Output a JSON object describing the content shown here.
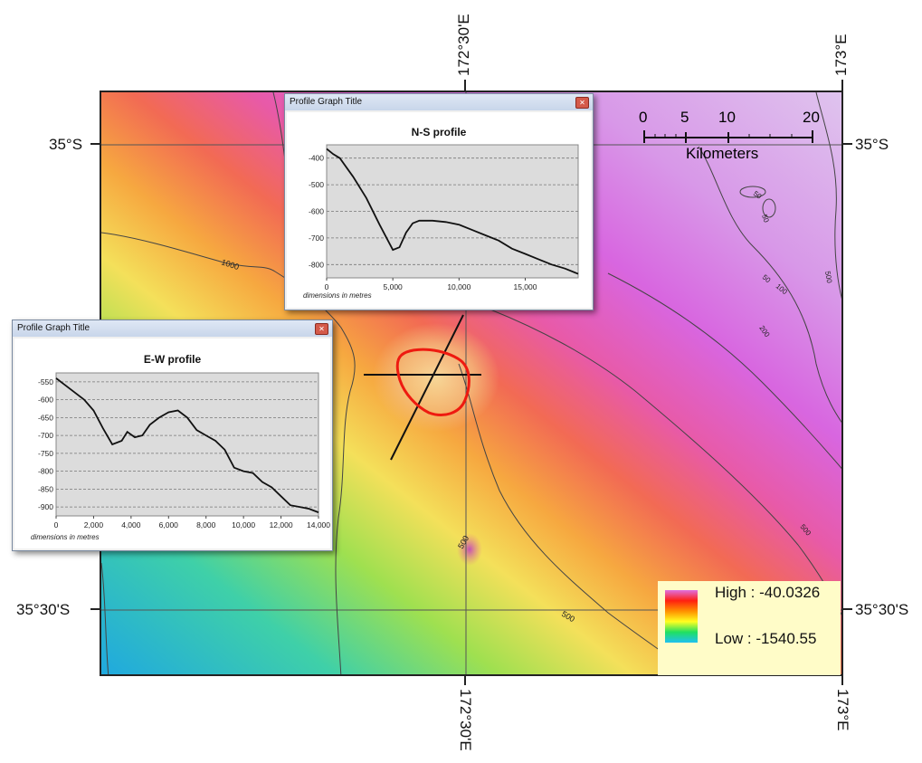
{
  "coords": {
    "top_lon_1": "172°30'E",
    "top_lon_2": "173°E",
    "bottom_lon_1": "172°30'E",
    "bottom_lon_2": "173°E",
    "left_lat_1": "35°S",
    "left_lat_2": "35°30'S",
    "right_lat_1": "35°S",
    "right_lat_2": "35°30'S"
  },
  "scale_bar": {
    "labels": [
      "0",
      "5",
      "10",
      "20"
    ],
    "unit": "Kilometers"
  },
  "contours": [
    "1000",
    "500",
    "500",
    "50",
    "50",
    "50",
    "100",
    "200",
    "500",
    "500"
  ],
  "legend": {
    "high_label": "High : -40.0326",
    "low_label": "Low : -1540.55",
    "colors": [
      "#e070e0",
      "#ff2010",
      "#ff9000",
      "#ffff20",
      "#20e060",
      "#20c0f0"
    ]
  },
  "profile_ns": {
    "window_title": "Profile Graph Title",
    "graph_title": "N-S profile",
    "note": "dimensions in metres",
    "y_ticks": [
      "-400",
      "-500",
      "-600",
      "-700",
      "-800"
    ],
    "x_ticks": [
      "0",
      "5,000",
      "10,000",
      "15,000"
    ],
    "chart_data": {
      "type": "line",
      "title": "N-S profile",
      "xlabel": "dimensions in metres",
      "xlim": [
        0,
        19000
      ],
      "ylim": [
        -850,
        -350
      ],
      "x": [
        0,
        500,
        1000,
        2000,
        3000,
        4000,
        5000,
        5500,
        6000,
        6500,
        7000,
        7500,
        8000,
        9000,
        10000,
        11000,
        12000,
        13000,
        14000,
        15000,
        16000,
        17000,
        18000,
        19000
      ],
      "y": [
        -365,
        -385,
        -400,
        -470,
        -550,
        -650,
        -745,
        -735,
        -680,
        -645,
        -635,
        -635,
        -635,
        -640,
        -650,
        -670,
        -690,
        -710,
        -740,
        -760,
        -780,
        -800,
        -815,
        -835
      ]
    }
  },
  "profile_ew": {
    "window_title": "Profile Graph Title",
    "graph_title": "E-W profile",
    "note": "dimensions in metres",
    "y_ticks": [
      "-550",
      "-600",
      "-650",
      "-700",
      "-750",
      "-800",
      "-850",
      "-900"
    ],
    "x_ticks": [
      "0",
      "2,000",
      "4,000",
      "6,000",
      "8,000",
      "10,000",
      "12,000",
      "14,000"
    ],
    "chart_data": {
      "type": "line",
      "title": "E-W profile",
      "xlabel": "dimensions in metres",
      "xlim": [
        0,
        14000
      ],
      "ylim": [
        -925,
        -525
      ],
      "x": [
        0,
        500,
        1000,
        1500,
        2000,
        2500,
        3000,
        3500,
        3800,
        4200,
        4600,
        5000,
        5500,
        6000,
        6500,
        7000,
        7500,
        8000,
        8500,
        9000,
        9500,
        10000,
        10500,
        11000,
        11500,
        12000,
        12500,
        13000,
        13500,
        14000
      ],
      "y": [
        -540,
        -560,
        -580,
        -600,
        -630,
        -680,
        -725,
        -715,
        -690,
        -705,
        -700,
        -670,
        -650,
        -635,
        -630,
        -650,
        -685,
        -700,
        -715,
        -740,
        -790,
        -800,
        -805,
        -830,
        -845,
        -870,
        -895,
        -900,
        -905,
        -915
      ]
    }
  }
}
